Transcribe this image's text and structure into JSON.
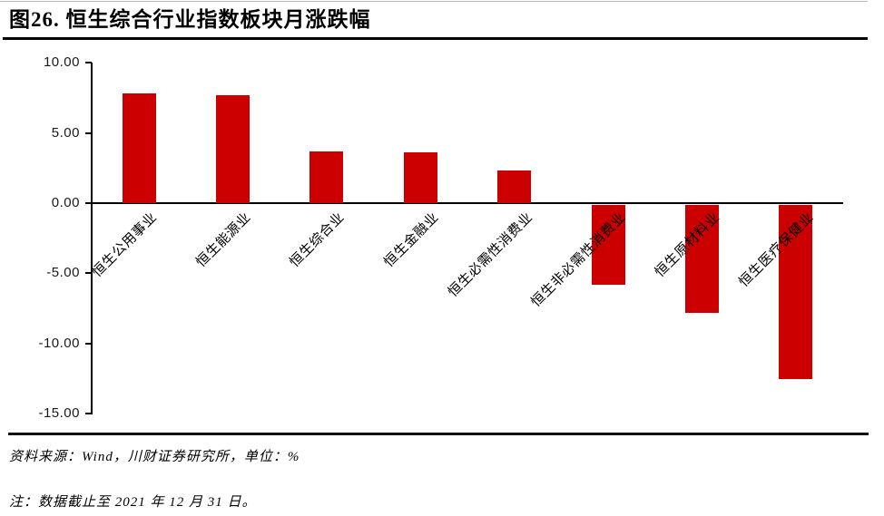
{
  "header": {
    "title": "图26.  恒生综合行业指数板块月涨跌幅"
  },
  "chart_data": {
    "type": "bar",
    "title": "恒生综合行业指数板块月涨跌幅",
    "categories": [
      "恒生公用事业",
      "恒生能源业",
      "恒生综合业",
      "恒生金融业",
      "恒生必需性消费业",
      "恒生非必需性消费业",
      "恒生原材料业",
      "恒生医疗保健业"
    ],
    "values": [
      7.8,
      7.7,
      3.7,
      3.6,
      2.3,
      -5.7,
      -7.7,
      -12.4
    ],
    "unit": "%",
    "ylim": [
      -15,
      10
    ],
    "ytick_values": [
      10,
      5,
      0,
      -5,
      -10,
      -15
    ],
    "ytick_labels": [
      "10.00",
      "5.00",
      "0.00",
      "-5.00",
      "-10.00",
      "-15.00"
    ],
    "bar_color": "#CC0000",
    "axis_color": "#000000",
    "grid": "off",
    "legend": "none",
    "xlabel_rotation_deg": 45
  },
  "footer": {
    "source": "资料来源：Wind，川财证券研究所，单位：%",
    "note": "注：数据截止至 2021 年 12 月 31 日。"
  }
}
